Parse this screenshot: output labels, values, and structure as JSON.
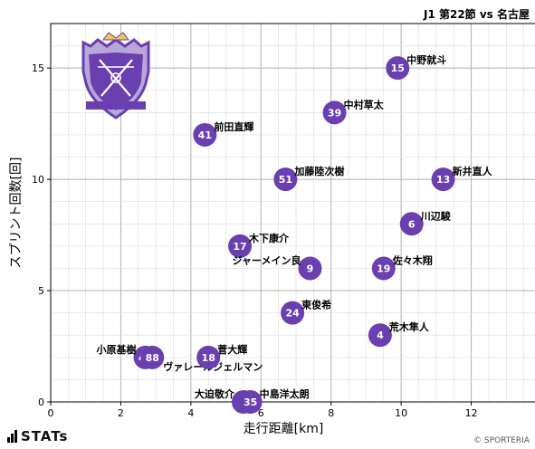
{
  "title": "J1 第22節 vs 名古屋",
  "footer": {
    "brand": "STATs",
    "copyright": "© SPORTERIA"
  },
  "colors": {
    "point": "#6a3fb0",
    "point_text": "#ffffff",
    "grid_major": "#b0b0b0",
    "grid_minor": "#dcdcdc"
  },
  "chart_data": {
    "type": "scatter",
    "xlabel": "走行距離[km]",
    "ylabel": "スプリント回数[回]",
    "xlim": [
      0,
      14
    ],
    "ylim": [
      0,
      17
    ],
    "xticks": [
      0,
      2,
      4,
      6,
      8,
      10,
      12,
      14
    ],
    "yticks": [
      0,
      5,
      10,
      15
    ],
    "grid": true,
    "points": [
      {
        "num": "15",
        "name": "中野就斗",
        "x": 9.9,
        "y": 15
      },
      {
        "num": "39",
        "name": "中村草太",
        "x": 8.1,
        "y": 13
      },
      {
        "num": "41",
        "name": "前田直輝",
        "x": 4.4,
        "y": 12
      },
      {
        "num": "51",
        "name": "加藤陸次樹",
        "x": 6.7,
        "y": 10
      },
      {
        "num": "13",
        "name": "新井直人",
        "x": 11.2,
        "y": 10
      },
      {
        "num": "6",
        "name": "川辺駿",
        "x": 10.3,
        "y": 8
      },
      {
        "num": "17",
        "name": "木下康介",
        "x": 5.4,
        "y": 7
      },
      {
        "num": "9",
        "name": "ジャーメイン良",
        "x": 7.4,
        "y": 6
      },
      {
        "num": "19",
        "name": "佐々木翔",
        "x": 9.5,
        "y": 6
      },
      {
        "num": "24",
        "name": "東俊希",
        "x": 6.9,
        "y": 4
      },
      {
        "num": "4",
        "name": "荒木隼人",
        "x": 9.4,
        "y": 3
      },
      {
        "num": "48",
        "name": "小原基樹",
        "x": 2.7,
        "y": 2
      },
      {
        "num": "88",
        "name": "ヴァレールジェルマン",
        "x": 2.9,
        "y": 2
      },
      {
        "num": "18",
        "name": "菅大輝",
        "x": 4.5,
        "y": 2
      },
      {
        "num": "1",
        "name": "大迫敬介",
        "x": 5.5,
        "y": 0
      },
      {
        "num": "35",
        "name": "中島洋太朗",
        "x": 5.7,
        "y": 0
      }
    ]
  }
}
